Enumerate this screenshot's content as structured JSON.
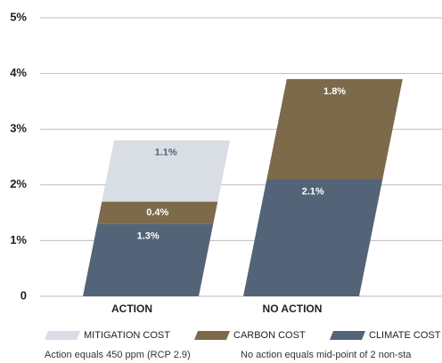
{
  "chart_data": {
    "type": "bar",
    "categories": [
      "ACTION",
      "NO ACTION"
    ],
    "series": [
      {
        "name": "CLIMATE COST",
        "color": "#546478",
        "values": [
          1.3,
          2.1
        ],
        "value_labels": [
          "1.3%",
          "2.1%"
        ]
      },
      {
        "name": "CARBON COST",
        "color": "#7d6a4b",
        "values": [
          0.4,
          1.8
        ],
        "value_labels": [
          "0.4%",
          "1.8%"
        ]
      },
      {
        "name": "MITIGATION COST",
        "color": "#d9dde4",
        "values": [
          1.1,
          null
        ],
        "value_labels": [
          "1.1%",
          null
        ]
      }
    ],
    "ylim": [
      0,
      5
    ],
    "yticks": [
      {
        "value": 0,
        "label": "0"
      },
      {
        "value": 1,
        "label": "1%"
      },
      {
        "value": 2,
        "label": "2%"
      },
      {
        "value": 3,
        "label": "3%"
      },
      {
        "value": 4,
        "label": "4%"
      },
      {
        "value": 5,
        "label": "5%"
      }
    ],
    "grid": true,
    "notes": [
      "Action equals 450 ppm (RCP 2.9)",
      "No action equals mid-point of 2 non-sta"
    ]
  }
}
